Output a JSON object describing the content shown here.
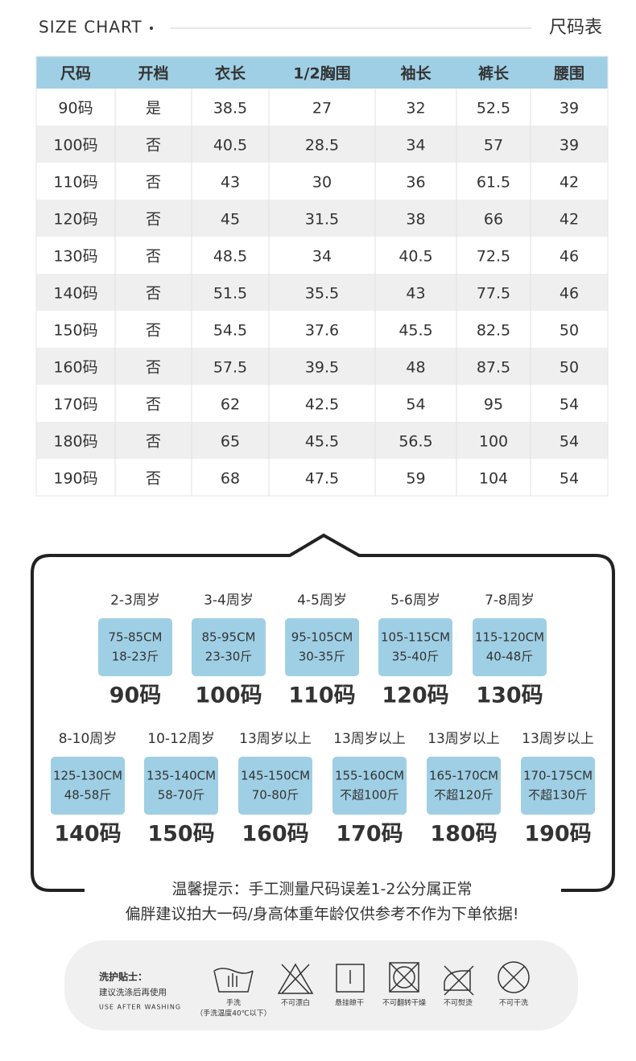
{
  "header": {
    "title_en": "SIZE CHART",
    "title_cn": "尺码表"
  },
  "table": {
    "headers": [
      "尺码",
      "开档",
      "衣长",
      "1/2胸围",
      "袖长",
      "裤长",
      "腰围"
    ],
    "rows": [
      [
        "90码",
        "是",
        38.5,
        27,
        32,
        52.5,
        39
      ],
      [
        "100码",
        "否",
        40.5,
        28.5,
        34,
        57,
        39
      ],
      [
        "110码",
        "否",
        43,
        30,
        36,
        61.5,
        42
      ],
      [
        "120码",
        "否",
        45,
        31.5,
        38,
        66,
        42
      ],
      [
        "130码",
        "否",
        48.5,
        34,
        40.5,
        72.5,
        46
      ],
      [
        "140码",
        "否",
        51.5,
        35.5,
        43,
        77.5,
        46
      ],
      [
        "150码",
        "否",
        54.5,
        37.6,
        45.5,
        82.5,
        50
      ],
      [
        "160码",
        "否",
        57.5,
        39.5,
        48,
        87.5,
        50
      ],
      [
        "170码",
        "否",
        62,
        42.5,
        54,
        95,
        54
      ],
      [
        "180码",
        "否",
        65,
        45.5,
        56.5,
        100,
        54
      ],
      [
        "190码",
        "否",
        68,
        47.5,
        59,
        104,
        54
      ]
    ]
  },
  "guide": {
    "items": [
      {
        "age": "2-3周岁",
        "height": "75-85CM",
        "weight": "18-23斤",
        "size": "90码"
      },
      {
        "age": "3-4周岁",
        "height": "85-95CM",
        "weight": "23-30斤",
        "size": "100码"
      },
      {
        "age": "4-5周岁",
        "height": "95-105CM",
        "weight": "30-35斤",
        "size": "110码"
      },
      {
        "age": "5-6周岁",
        "height": "105-115CM",
        "weight": "35-40斤",
        "size": "120码"
      },
      {
        "age": "7-8周岁",
        "height": "115-120CM",
        "weight": "40-48斤",
        "size": "130码"
      },
      {
        "age": "8-10周岁",
        "height": "125-130CM",
        "weight": "48-58斤",
        "size": "140码"
      },
      {
        "age": "10-12周岁",
        "height": "135-140CM",
        "weight": "58-70斤",
        "size": "150码"
      },
      {
        "age": "13周岁以上",
        "height": "145-150CM",
        "weight": "70-80斤",
        "size": "160码"
      },
      {
        "age": "13周岁以上",
        "height": "155-160CM",
        "weight": "不超100斤",
        "size": "170码"
      },
      {
        "age": "13周岁以上",
        "height": "165-170CM",
        "weight": "不超120斤",
        "size": "180码"
      },
      {
        "age": "13周岁以上",
        "height": "170-175CM",
        "weight": "不超130斤",
        "size": "190码"
      }
    ]
  },
  "notes": [
    "温馨提示：手工测量尺码误差1-2公分属正常",
    "偏胖建议拍大一码/身高体重年龄仅供参考不作为下单依据!"
  ],
  "care": {
    "title": "洗护贴士：",
    "subtitle": "建议洗涤后再使用",
    "subtitle_en": "USE AFTER WASHING",
    "icons": [
      {
        "label": "手洗",
        "note": "（手洗温度40℃以下）"
      },
      {
        "label": "不可漂白"
      },
      {
        "label": "悬挂晾干"
      },
      {
        "label": "不可翻转干燥"
      },
      {
        "label": "不可熨烫"
      },
      {
        "label": "不可干洗"
      }
    ]
  }
}
